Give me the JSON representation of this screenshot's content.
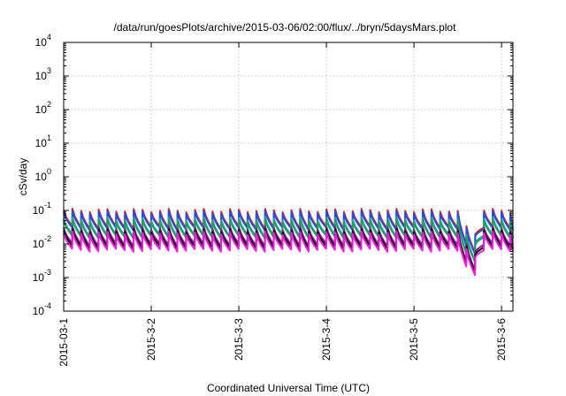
{
  "chart_data": {
    "type": "line",
    "title": "/data/run/goesPlots/archive/2015-03-06/02:00/flux/../bryn/5daysMars.plot",
    "xlabel": "Coordinated Universal Time (UTC)",
    "ylabel": "cSv/day",
    "y_scale": "log",
    "ylim_exponents": [
      -4,
      4
    ],
    "y_tick_mantissa": "10",
    "y_tick_exponents": [
      "-4",
      "-3",
      "-2",
      "-1",
      "0",
      "1",
      "2",
      "3",
      "4"
    ],
    "xlim_days": [
      0,
      5.13
    ],
    "x_ticks": [
      {
        "label": "2015-03-1",
        "day": 0
      },
      {
        "label": "2015-3-2",
        "day": 1
      },
      {
        "label": "2015-3-3",
        "day": 2
      },
      {
        "label": "2015-3-4",
        "day": 3
      },
      {
        "label": "2015-3-5",
        "day": 4
      },
      {
        "label": "2015-3-6",
        "day": 5
      }
    ],
    "grid": true,
    "cycle_days": 0.1,
    "dip": {
      "start_day": 4.45,
      "min_day": 4.67,
      "end_day": 4.75,
      "min_factor": 0.09
    },
    "series": [
      {
        "color": "#e02020",
        "peak": 0.1,
        "trough": 0.031
      },
      {
        "color": "#2050e0",
        "peak": 0.088,
        "trough": 0.028
      },
      {
        "color": "#20a0b8",
        "peak": 0.056,
        "trough": 0.018
      },
      {
        "color": "#20a060",
        "peak": 0.05,
        "trough": 0.016
      },
      {
        "color": "#802080",
        "peak": 0.03,
        "trough": 0.0095
      },
      {
        "color": "#101010",
        "peak": 0.025,
        "trough": 0.008
      },
      {
        "color": "#ee20dd",
        "peak": 0.021,
        "trough": 0.0065
      }
    ]
  }
}
